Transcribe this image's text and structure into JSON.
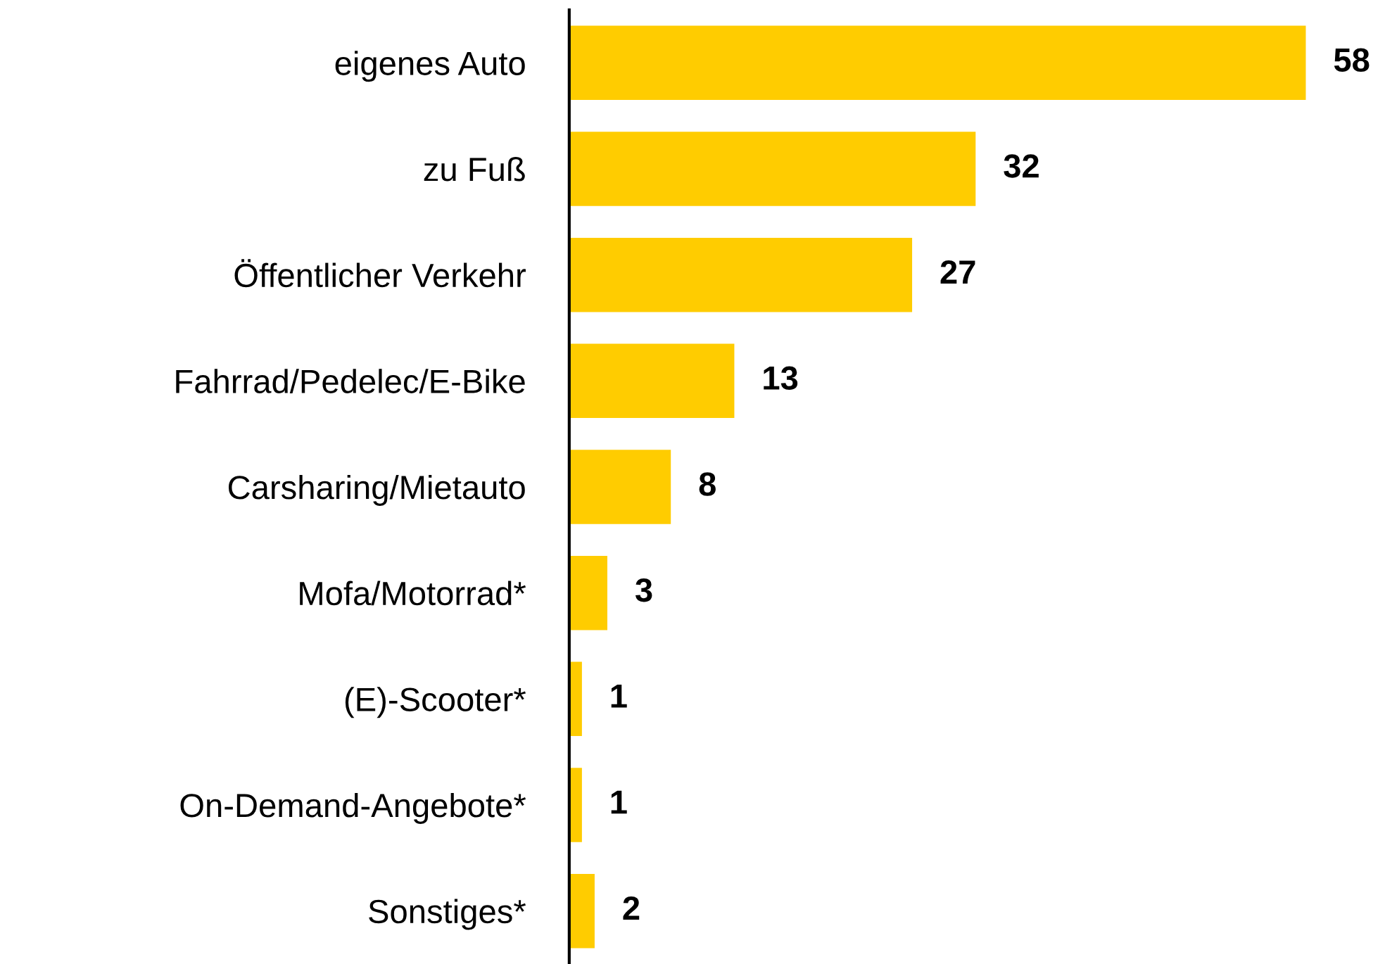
{
  "chart_data": {
    "type": "bar",
    "orientation": "horizontal",
    "categories": [
      "eigenes Auto",
      "zu Fuß",
      "Öffentlicher Verkehr",
      "Fahrrad/Pedelec/E-Bike",
      "Carsharing/Mietauto",
      "Mofa/Motorrad*",
      "(E)-Scooter*",
      "On-Demand-Angebote*",
      "Sonstiges*"
    ],
    "values": [
      58,
      32,
      27,
      13,
      8,
      3,
      1,
      1,
      2
    ],
    "color": "#ffcc00",
    "data_labels": true,
    "grid": false,
    "tick_labels": "y"
  }
}
